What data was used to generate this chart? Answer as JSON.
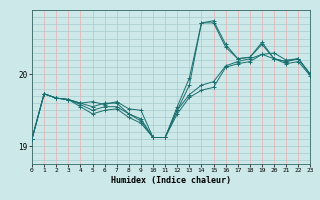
{
  "xlabel": "Humidex (Indice chaleur)",
  "bg_color": "#cce8e8",
  "line_color": "#1a6e6e",
  "grid_h_color": "#a8cccc",
  "grid_v_color": "#e8b8b8",
  "x_ticks": [
    0,
    1,
    2,
    3,
    4,
    5,
    6,
    7,
    8,
    9,
    10,
    11,
    12,
    13,
    14,
    15,
    16,
    17,
    18,
    19,
    20,
    21,
    22,
    23
  ],
  "y_ticks": [
    19,
    20
  ],
  "xlim": [
    0,
    23
  ],
  "ylim": [
    18.75,
    20.9
  ],
  "series1": [
    19.1,
    19.73,
    19.67,
    19.65,
    19.6,
    19.62,
    19.58,
    19.62,
    19.52,
    19.5,
    19.12,
    19.12,
    19.5,
    19.72,
    19.85,
    19.9,
    20.12,
    20.18,
    20.22,
    20.28,
    20.3,
    20.2,
    20.22,
    20.0
  ],
  "series2": [
    19.1,
    19.73,
    19.67,
    19.65,
    19.6,
    19.55,
    19.6,
    19.6,
    19.45,
    19.38,
    19.12,
    19.12,
    19.55,
    19.95,
    20.72,
    20.72,
    20.38,
    20.22,
    20.24,
    20.42,
    20.22,
    20.18,
    20.22,
    20.0
  ],
  "series3": [
    19.1,
    19.73,
    19.67,
    19.65,
    19.58,
    19.5,
    19.55,
    19.55,
    19.45,
    19.35,
    19.12,
    19.12,
    19.5,
    19.85,
    20.72,
    20.75,
    20.42,
    20.22,
    20.24,
    20.45,
    20.22,
    20.18,
    20.22,
    20.0
  ],
  "series4": [
    19.1,
    19.73,
    19.67,
    19.65,
    19.55,
    19.45,
    19.5,
    19.52,
    19.4,
    19.32,
    19.12,
    19.12,
    19.45,
    19.68,
    19.78,
    19.82,
    20.1,
    20.15,
    20.18,
    20.28,
    20.22,
    20.15,
    20.18,
    19.98
  ]
}
